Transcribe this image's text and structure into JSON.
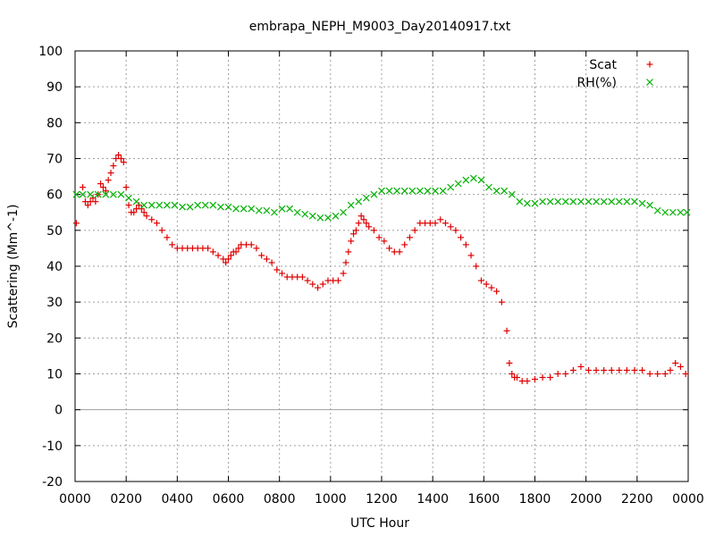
{
  "chart_data": {
    "type": "scatter",
    "title": "embrapa_NEPH_M9003_Day20140917.txt",
    "xlabel": "UTC Hour",
    "ylabel": "Scattering (Mm^-1)",
    "xlim": [
      0,
      24
    ],
    "ylim": [
      -20,
      100
    ],
    "x_ticks": [
      0,
      2,
      4,
      6,
      8,
      10,
      12,
      14,
      16,
      18,
      20,
      22,
      24
    ],
    "x_tick_labels": [
      "0000",
      "0200",
      "0400",
      "0600",
      "0800",
      "1000",
      "1200",
      "1400",
      "1600",
      "1800",
      "2000",
      "2200",
      "0000"
    ],
    "y_ticks": [
      -20,
      -10,
      0,
      10,
      20,
      30,
      40,
      50,
      60,
      70,
      80,
      90,
      100
    ],
    "y_tick_labels": [
      "-20",
      "-10",
      "0",
      "10",
      "20",
      "30",
      "40",
      "50",
      "60",
      "70",
      "80",
      "90",
      "100"
    ],
    "grid": true,
    "legend_position": "top-right",
    "series": [
      {
        "name": "Scat",
        "marker": "+",
        "color": "#e00000",
        "x": [
          0.05,
          0.3,
          0.4,
          0.5,
          0.6,
          0.7,
          0.8,
          0.9,
          1.0,
          1.1,
          1.2,
          1.3,
          1.4,
          1.5,
          1.6,
          1.7,
          1.8,
          1.9,
          2.0,
          2.1,
          2.2,
          2.3,
          2.4,
          2.5,
          2.6,
          2.7,
          2.8,
          3.0,
          3.2,
          3.4,
          3.6,
          3.8,
          4.0,
          4.2,
          4.4,
          4.6,
          4.8,
          5.0,
          5.2,
          5.4,
          5.6,
          5.8,
          5.9,
          6.0,
          6.1,
          6.2,
          6.3,
          6.4,
          6.5,
          6.7,
          6.9,
          7.1,
          7.3,
          7.5,
          7.7,
          7.9,
          8.1,
          8.3,
          8.5,
          8.7,
          8.9,
          9.1,
          9.3,
          9.5,
          9.7,
          9.9,
          10.1,
          10.3,
          10.5,
          10.6,
          10.7,
          10.8,
          10.9,
          11.0,
          11.1,
          11.2,
          11.3,
          11.4,
          11.5,
          11.7,
          11.9,
          12.1,
          12.3,
          12.5,
          12.7,
          12.9,
          13.1,
          13.3,
          13.5,
          13.7,
          13.9,
          14.1,
          14.3,
          14.5,
          14.7,
          14.9,
          15.1,
          15.3,
          15.5,
          15.7,
          15.9,
          16.1,
          16.3,
          16.5,
          16.7,
          16.9,
          17.0,
          17.1,
          17.2,
          17.3,
          17.5,
          17.7,
          18.0,
          18.3,
          18.6,
          18.9,
          19.2,
          19.5,
          19.8,
          20.1,
          20.4,
          20.7,
          21.0,
          21.3,
          21.6,
          21.9,
          22.2,
          22.5,
          22.8,
          23.1,
          23.3,
          23.5,
          23.7,
          23.9
        ],
        "y": [
          52,
          62,
          58,
          57,
          58,
          59,
          58,
          60,
          63,
          62,
          61,
          64,
          66,
          68,
          70,
          71,
          70,
          69,
          62,
          57,
          55,
          55,
          56,
          57,
          56,
          55,
          54,
          53,
          52,
          50,
          48,
          46,
          45,
          45,
          45,
          45,
          45,
          45,
          45,
          44,
          43,
          42,
          41,
          42,
          43,
          44,
          44,
          45,
          46,
          46,
          46,
          45,
          43,
          42,
          41,
          39,
          38,
          37,
          37,
          37,
          37,
          36,
          35,
          34,
          35,
          36,
          36,
          36,
          38,
          41,
          44,
          47,
          49,
          50,
          52,
          54,
          53,
          52,
          51,
          50,
          48,
          47,
          45,
          44,
          44,
          46,
          48,
          50,
          52,
          52,
          52,
          52,
          53,
          52,
          51,
          50,
          48,
          46,
          43,
          40,
          36,
          35,
          34,
          33,
          30,
          22,
          13,
          10,
          9,
          9,
          8,
          8,
          8.5,
          9,
          9,
          10,
          10,
          11,
          12,
          11,
          11,
          11,
          11,
          11,
          11,
          11,
          11,
          10,
          10,
          10,
          11,
          13,
          12,
          10
        ]
      },
      {
        "name": "RH(%)",
        "marker": "x",
        "color": "#00b000",
        "x": [
          0.05,
          0.3,
          0.6,
          0.9,
          1.2,
          1.5,
          1.8,
          2.1,
          2.4,
          2.7,
          3.0,
          3.3,
          3.6,
          3.9,
          4.2,
          4.5,
          4.8,
          5.1,
          5.4,
          5.7,
          6.0,
          6.3,
          6.6,
          6.9,
          7.2,
          7.5,
          7.8,
          8.1,
          8.4,
          8.7,
          9.0,
          9.3,
          9.6,
          9.9,
          10.2,
          10.5,
          10.8,
          11.1,
          11.4,
          11.7,
          12.0,
          12.3,
          12.6,
          12.9,
          13.2,
          13.5,
          13.8,
          14.1,
          14.4,
          14.7,
          15.0,
          15.3,
          15.6,
          15.9,
          16.2,
          16.5,
          16.8,
          17.1,
          17.4,
          17.7,
          18.0,
          18.3,
          18.6,
          18.9,
          19.2,
          19.5,
          19.8,
          20.1,
          20.4,
          20.7,
          21.0,
          21.3,
          21.6,
          21.9,
          22.2,
          22.5,
          22.8,
          23.1,
          23.4,
          23.7,
          23.95
        ],
        "y": [
          60,
          60,
          60,
          60,
          60,
          60,
          60,
          59,
          58,
          57,
          57,
          57,
          57,
          57,
          56.5,
          56.5,
          57,
          57,
          57,
          56.5,
          56.5,
          56,
          56,
          56,
          55.5,
          55.5,
          55,
          56,
          56,
          55,
          54.5,
          54,
          53.5,
          53.5,
          54,
          55,
          57,
          58,
          59,
          60,
          61,
          61,
          61,
          61,
          61,
          61,
          61,
          61,
          61,
          62,
          63,
          64,
          64.5,
          64,
          62,
          61,
          61,
          60,
          58,
          57.5,
          57.5,
          58,
          58,
          58,
          58,
          58,
          58,
          58,
          58,
          58,
          58,
          58,
          58,
          58,
          57.5,
          57,
          55.5,
          55,
          55,
          55,
          55
        ]
      }
    ]
  }
}
